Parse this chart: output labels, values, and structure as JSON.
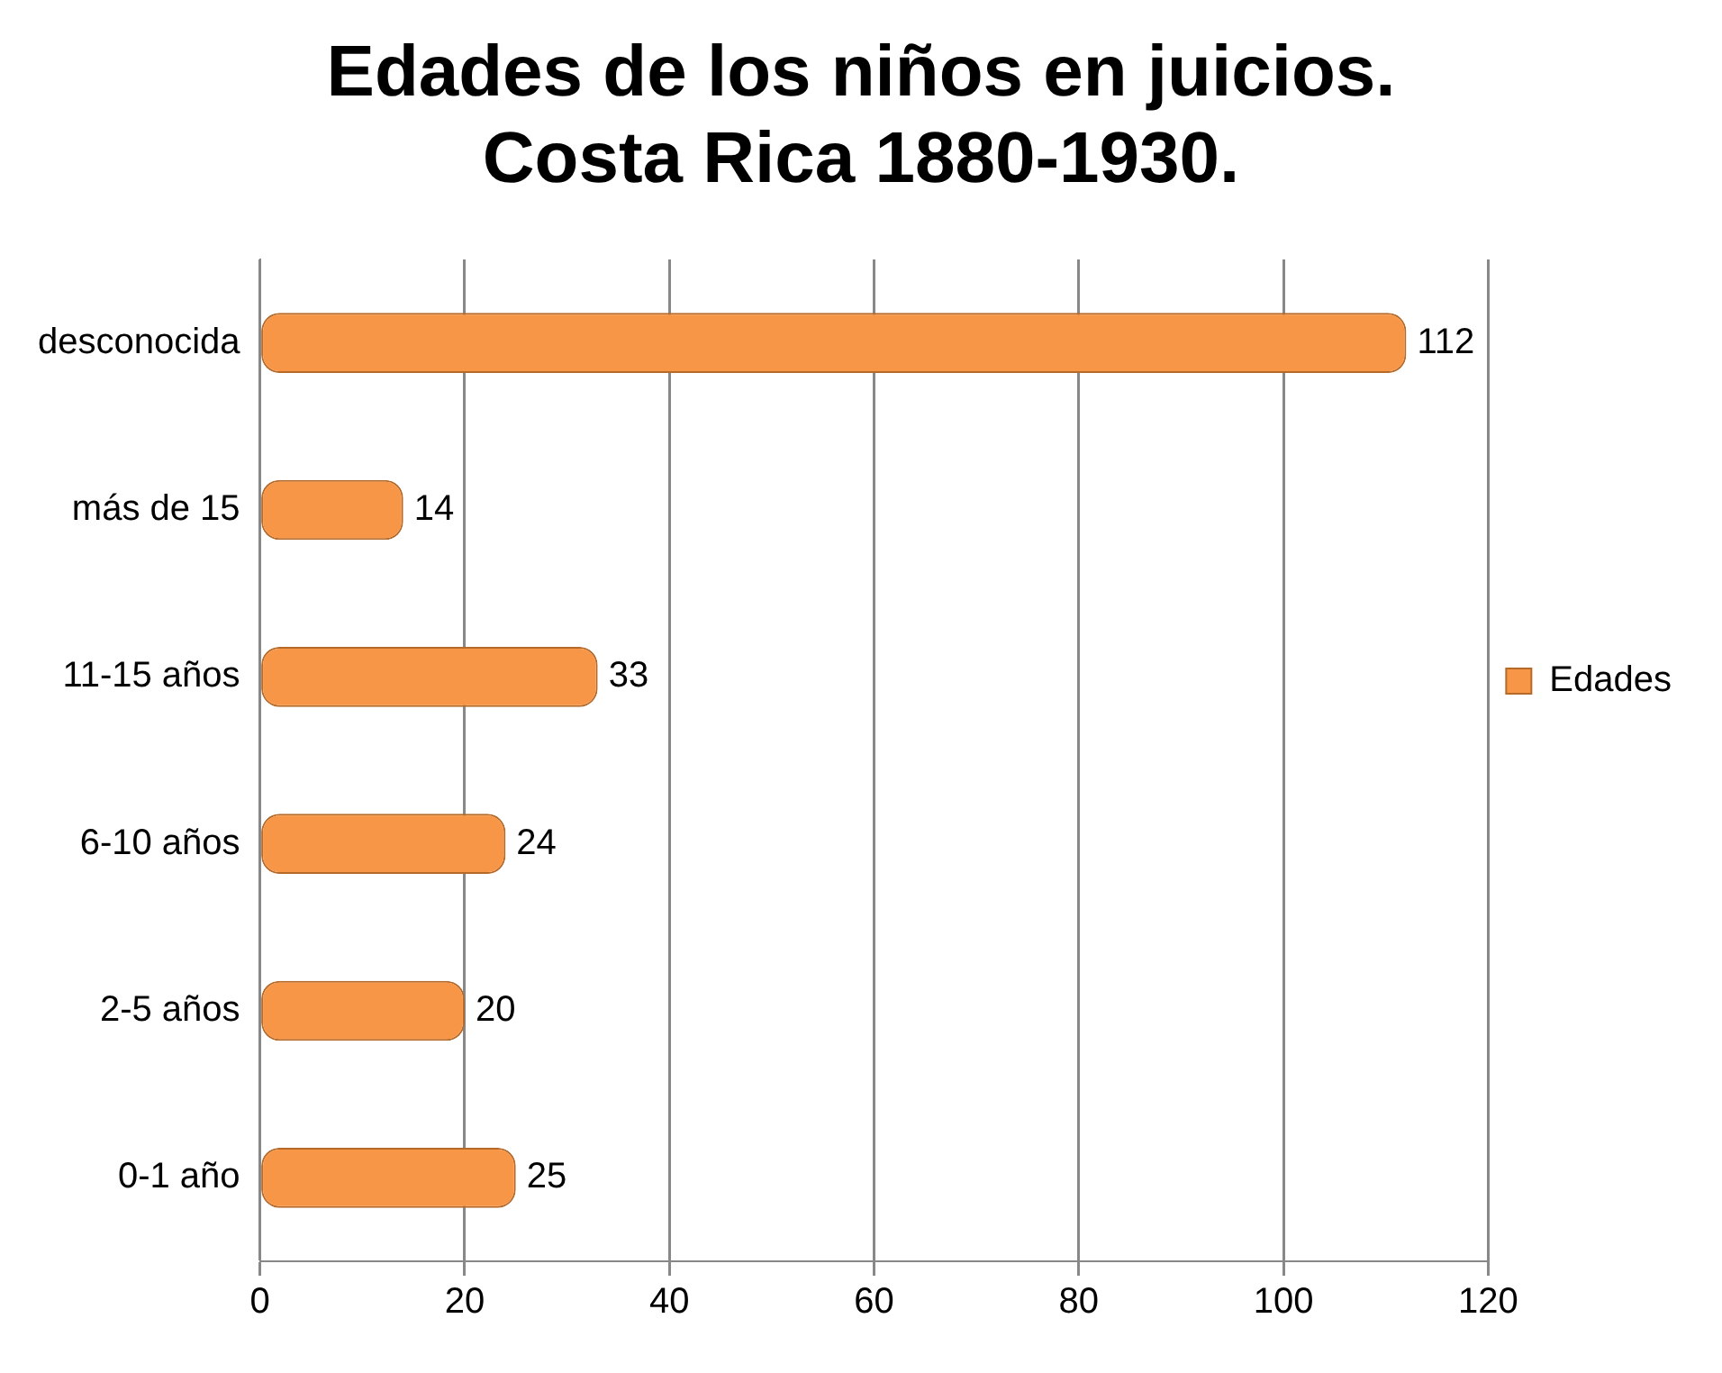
{
  "chart_data": {
    "type": "bar",
    "orientation": "horizontal",
    "title": "Edades de los niños en juicios. Costa Rica 1880-1930.",
    "categories": [
      "desconocida",
      "más de 15",
      "11-15 años",
      "6-10 años",
      "2-5 años",
      "0-1 año"
    ],
    "series": [
      {
        "name": "Edades",
        "color": "#f79646",
        "values": [
          112,
          14,
          33,
          24,
          20,
          25
        ]
      }
    ],
    "xlim": [
      0,
      120
    ],
    "xticks": [
      0,
      20,
      40,
      60,
      80,
      100,
      120
    ],
    "grid": "x",
    "legend": "right",
    "data_labels": true
  }
}
